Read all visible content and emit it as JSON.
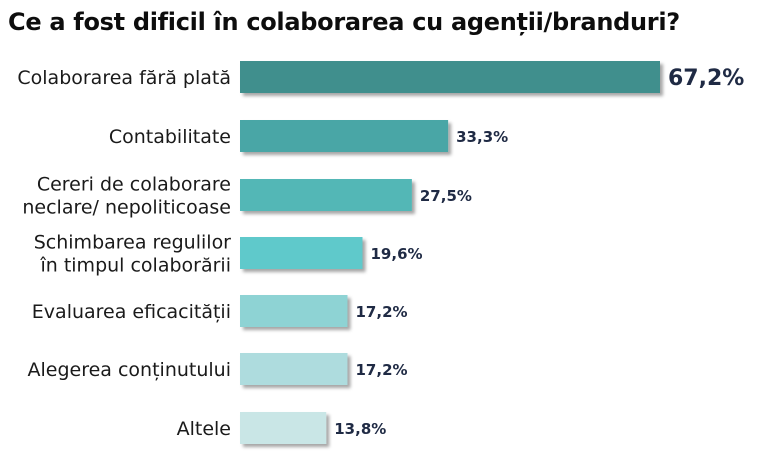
{
  "chart_data": {
    "type": "bar",
    "orientation": "horizontal",
    "title": "Ce a fost dificil în colaborarea cu agenții/branduri?",
    "xlim": [
      0,
      67.2
    ],
    "grid": false,
    "legend": "none",
    "categories": [
      [
        "Colaborarea fără plată"
      ],
      [
        "Contabilitate"
      ],
      [
        "Cereri de colaborare",
        "neclare/ nepoliticoase"
      ],
      [
        "Schimbarea regulilor",
        "în timpul colaborării"
      ],
      [
        "Evaluarea eficacității"
      ],
      [
        "Alegerea conținutului"
      ],
      [
        "Altele"
      ]
    ],
    "values": [
      67.2,
      33.3,
      27.5,
      19.6,
      17.2,
      17.2,
      13.8
    ],
    "value_labels": [
      "67,2%",
      "33,3%",
      "27,5%",
      "19,6%",
      "17,2%",
      "17,2%",
      "13,8%"
    ],
    "colors": [
      "#3f8f8d",
      "#48a6a6",
      "#52b7b6",
      "#5ec9cb",
      "#8ed3d4",
      "#aedcde",
      "#c9e6e6"
    ]
  }
}
